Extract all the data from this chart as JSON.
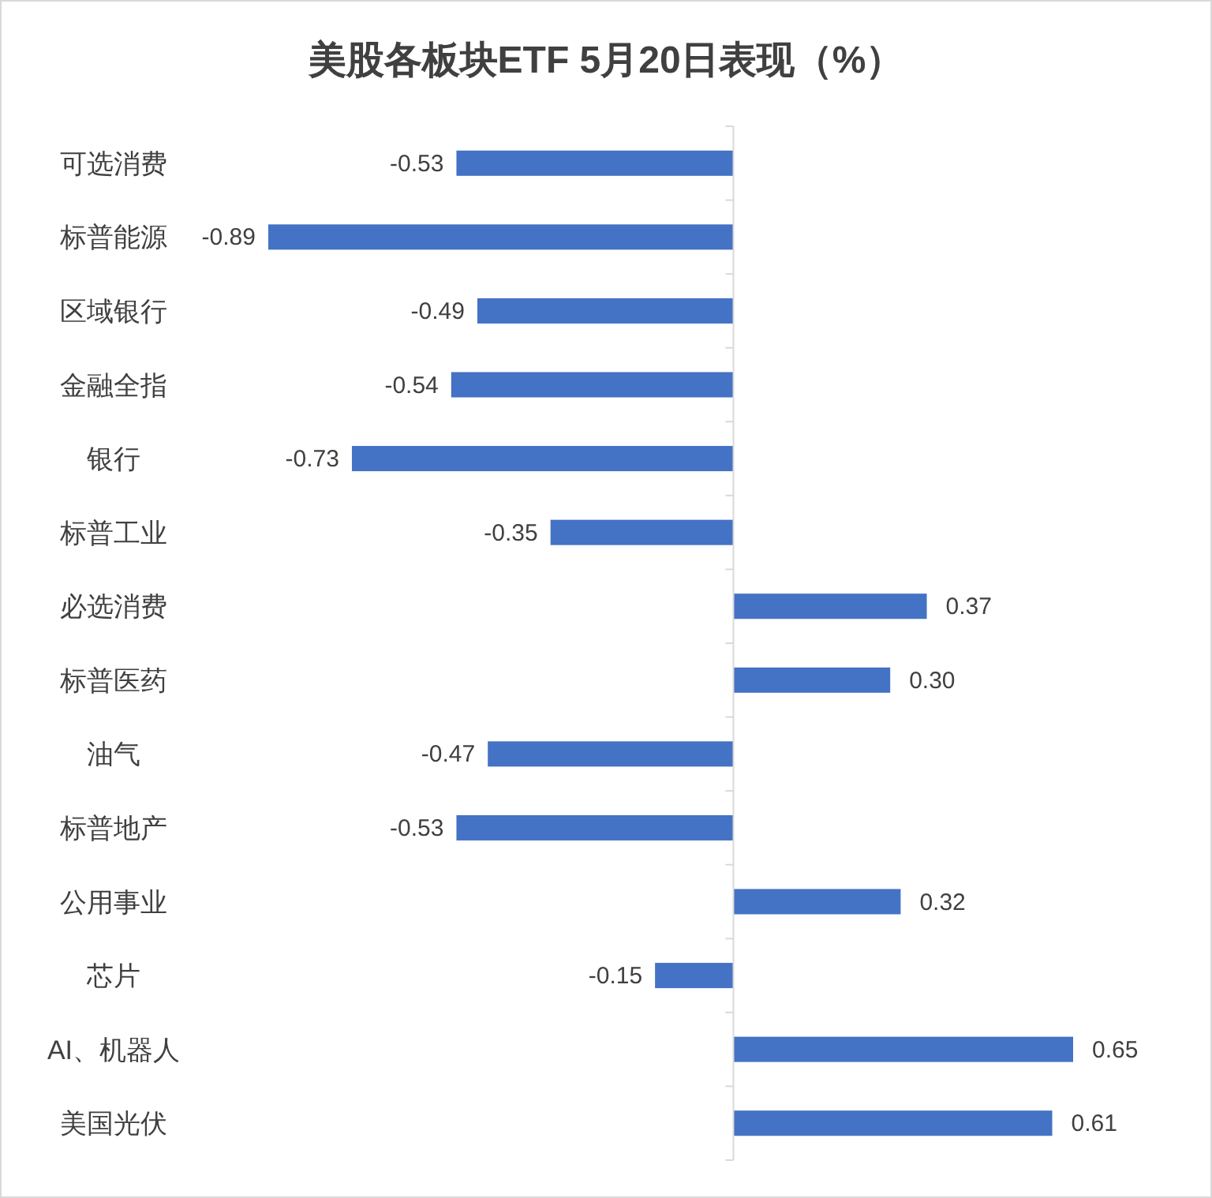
{
  "chart_data": {
    "type": "bar",
    "orientation": "horizontal",
    "title": "美股各板块ETF  5月20日表现（%）",
    "categories": [
      "可选消费",
      "标普能源",
      "区域银行",
      "金融全指",
      "银行",
      "标普工业",
      "必选消费",
      "标普医药",
      "油气",
      "标普地产",
      "公用事业",
      "芯片",
      "AI、机器人",
      "美国光伏"
    ],
    "values": [
      -0.53,
      -0.89,
      -0.49,
      -0.54,
      -0.73,
      -0.35,
      0.37,
      0.3,
      -0.47,
      -0.53,
      0.32,
      -0.15,
      0.65,
      0.61
    ],
    "value_labels": [
      "-0.53",
      "-0.89",
      "-0.49",
      "-0.54",
      "-0.73",
      "-0.35",
      "0.37",
      "0.30",
      "-0.47",
      "-0.53",
      "0.32",
      "-0.15",
      "0.65",
      "0.61"
    ],
    "color": "#4472c4"
  }
}
